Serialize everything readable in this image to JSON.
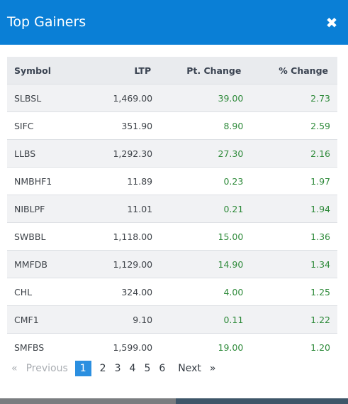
{
  "modal": {
    "title": "Top Gainers",
    "close_glyph": "✖"
  },
  "table": {
    "headers": [
      "Symbol",
      "LTP",
      "Pt. Change",
      "% Change"
    ],
    "rows": [
      {
        "symbol": "SLBSL",
        "ltp": "1,469.00",
        "pt_change": "39.00",
        "pct_change": "2.73"
      },
      {
        "symbol": "SIFC",
        "ltp": "351.90",
        "pt_change": "8.90",
        "pct_change": "2.59"
      },
      {
        "symbol": "LLBS",
        "ltp": "1,292.30",
        "pt_change": "27.30",
        "pct_change": "2.16"
      },
      {
        "symbol": "NMBHF1",
        "ltp": "11.89",
        "pt_change": "0.23",
        "pct_change": "1.97"
      },
      {
        "symbol": "NIBLPF",
        "ltp": "11.01",
        "pt_change": "0.21",
        "pct_change": "1.94"
      },
      {
        "symbol": "SWBBL",
        "ltp": "1,118.00",
        "pt_change": "15.00",
        "pct_change": "1.36"
      },
      {
        "symbol": "MMFDB",
        "ltp": "1,129.00",
        "pt_change": "14.90",
        "pct_change": "1.34"
      },
      {
        "symbol": "CHL",
        "ltp": "324.00",
        "pt_change": "4.00",
        "pct_change": "1.25"
      },
      {
        "symbol": "CMF1",
        "ltp": "9.10",
        "pt_change": "0.11",
        "pct_change": "1.22"
      },
      {
        "symbol": "SMFBS",
        "ltp": "1,599.00",
        "pt_change": "19.00",
        "pct_change": "1.20"
      }
    ]
  },
  "pagination": {
    "first": "«",
    "previous": "Previous",
    "pages": [
      "1",
      "2",
      "3",
      "4",
      "5",
      "6"
    ],
    "active_page": "1",
    "next": "Next",
    "last": "»"
  },
  "colors": {
    "header_bg": "#0a7fd6",
    "gain_green": "#2e8a3a",
    "active_page_bg": "#2b8fe0"
  }
}
